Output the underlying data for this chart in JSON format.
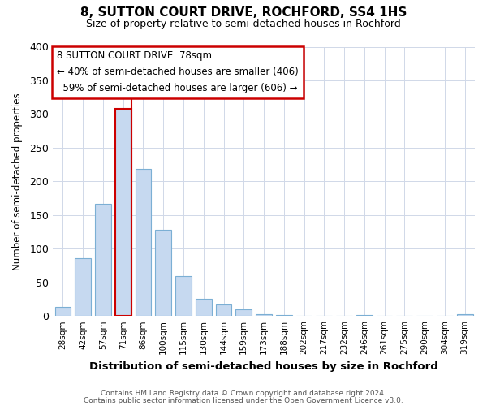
{
  "title": "8, SUTTON COURT DRIVE, ROCHFORD, SS4 1HS",
  "subtitle": "Size of property relative to semi-detached houses in Rochford",
  "xlabel": "Distribution of semi-detached houses by size in Rochford",
  "ylabel": "Number of semi-detached properties",
  "categories": [
    "28sqm",
    "42sqm",
    "57sqm",
    "71sqm",
    "86sqm",
    "100sqm",
    "115sqm",
    "130sqm",
    "144sqm",
    "159sqm",
    "173sqm",
    "188sqm",
    "202sqm",
    "217sqm",
    "232sqm",
    "246sqm",
    "261sqm",
    "275sqm",
    "290sqm",
    "304sqm",
    "319sqm"
  ],
  "values": [
    13,
    86,
    167,
    308,
    218,
    128,
    59,
    26,
    17,
    10,
    3,
    2,
    0,
    0,
    0,
    2,
    0,
    0,
    0,
    0,
    3
  ],
  "bar_color": "#c6d9f0",
  "bar_edge_color": "#7bafd4",
  "highlight_bar_index": 3,
  "highlight_bar_edge_color": "#cc0000",
  "property_size": "78sqm",
  "property_name": "8 SUTTON COURT DRIVE",
  "pct_smaller": 40,
  "count_smaller": 406,
  "pct_larger": 59,
  "count_larger": 606,
  "annotation_box_edge_color": "#cc0000",
  "ylim": [
    0,
    400
  ],
  "yticks": [
    0,
    50,
    100,
    150,
    200,
    250,
    300,
    350,
    400
  ],
  "footer1": "Contains HM Land Registry data © Crown copyright and database right 2024.",
  "footer2": "Contains public sector information licensed under the Open Government Licence v3.0.",
  "bg_color": "#ffffff",
  "plot_bg_color": "#ffffff",
  "grid_color": "#d0d8e8"
}
